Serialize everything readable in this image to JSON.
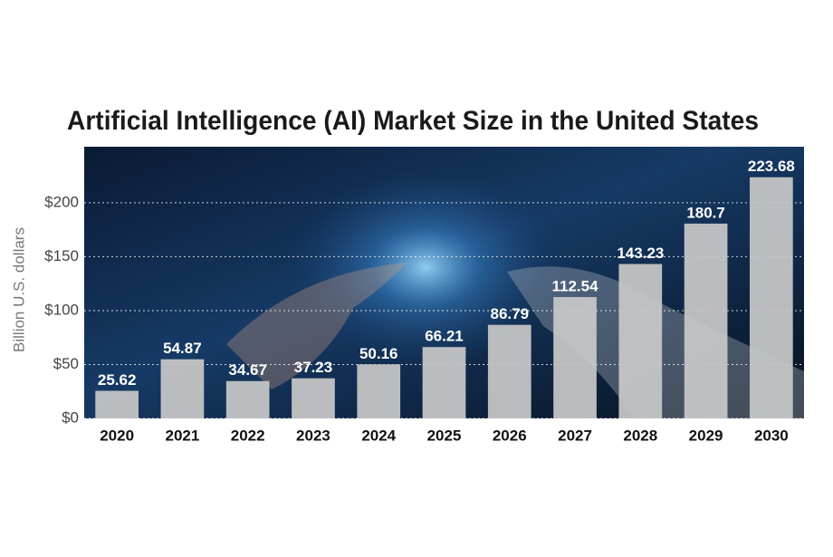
{
  "chart_data": {
    "type": "bar",
    "title": "Artificial Intelligence (AI) Market Size in the United States",
    "y_axis_label": "Billion U.S. dollars",
    "categories": [
      "2020",
      "2021",
      "2022",
      "2023",
      "2024",
      "2025",
      "2026",
      "2027",
      "2028",
      "2029",
      "2030"
    ],
    "values": [
      25.62,
      54.87,
      34.67,
      37.23,
      50.16,
      66.21,
      86.79,
      112.54,
      143.23,
      180.7,
      223.68
    ],
    "color": "#c9c9c9",
    "ylim": [
      0,
      252
    ],
    "yticks": [
      {
        "value": 0,
        "label": "$0"
      },
      {
        "value": 50,
        "label": "$50"
      },
      {
        "value": 100,
        "label": "$100"
      },
      {
        "value": 150,
        "label": "$150"
      },
      {
        "value": 200,
        "label": "$200"
      }
    ],
    "grid": true
  }
}
